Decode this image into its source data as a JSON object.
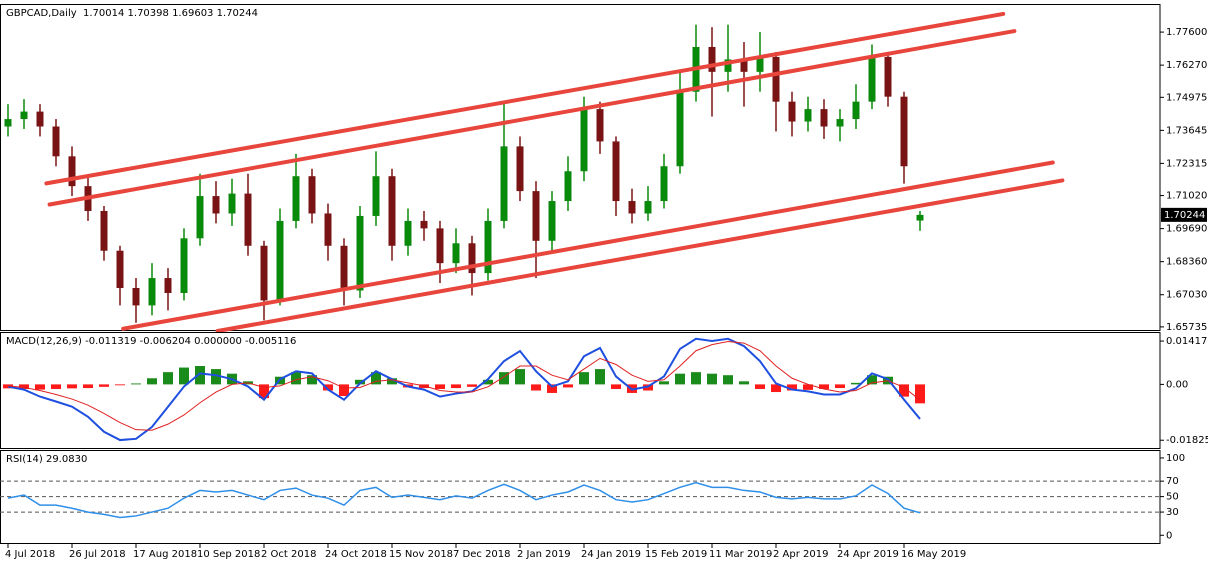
{
  "chart_data": [
    {
      "type": "candlestick",
      "title": "GBPCAD,Daily  1.70014 1.70398 1.69603 1.70244",
      "categories": [
        "4 Jul 2018",
        null,
        null,
        null,
        "26 Jul 2018",
        null,
        null,
        null,
        "17 Aug 2018",
        null,
        null,
        null,
        "10 Sep 2018",
        null,
        null,
        null,
        "2 Oct 2018",
        null,
        null,
        null,
        "24 Oct 2018",
        null,
        null,
        null,
        "15 Nov 2018",
        null,
        null,
        null,
        "7 Dec 2018",
        null,
        null,
        null,
        "2 Jan 2019",
        null,
        null,
        null,
        "24 Jan 2019",
        null,
        null,
        null,
        "15 Feb 2019",
        null,
        null,
        null,
        "11 Mar 2019",
        null,
        null,
        null,
        "2 Apr 2019",
        null,
        null,
        null,
        "24 Apr 2019",
        null,
        null,
        null,
        "16 May 2019",
        null
      ],
      "open": [
        1.738,
        1.741,
        1.744,
        1.738,
        1.726,
        1.714,
        1.704,
        1.688,
        1.673,
        1.666,
        1.677,
        1.671,
        1.693,
        1.71,
        1.703,
        1.711,
        1.69,
        1.668,
        1.7,
        1.718,
        1.703,
        1.69,
        1.672,
        1.702,
        1.718,
        1.69,
        1.7,
        1.697,
        1.683,
        1.691,
        1.679,
        1.7,
        1.73,
        1.712,
        1.692,
        1.708,
        1.72,
        1.745,
        1.732,
        1.708,
        1.703,
        1.708,
        1.722,
        1.752,
        1.77,
        1.76,
        1.765,
        1.76,
        1.766,
        1.748,
        1.74,
        1.745,
        1.738,
        1.741,
        1.748,
        1.766,
        1.75,
        1.70014
      ],
      "high": [
        1.747,
        1.749,
        1.747,
        1.741,
        1.73,
        1.718,
        1.706,
        1.69,
        1.677,
        1.683,
        1.681,
        1.697,
        1.719,
        1.716,
        1.717,
        1.719,
        1.692,
        1.705,
        1.727,
        1.721,
        1.707,
        1.693,
        1.706,
        1.728,
        1.721,
        1.705,
        1.704,
        1.7,
        1.697,
        1.694,
        1.705,
        1.747,
        1.734,
        1.716,
        1.712,
        1.726,
        1.75,
        1.748,
        1.734,
        1.713,
        1.714,
        1.727,
        1.76,
        1.779,
        1.778,
        1.779,
        1.772,
        1.776,
        1.768,
        1.752,
        1.75,
        1.749,
        1.745,
        1.755,
        1.771,
        1.768,
        1.752,
        1.70398
      ],
      "low": [
        1.734,
        1.737,
        1.734,
        1.722,
        1.71,
        1.7,
        1.684,
        1.666,
        1.659,
        1.662,
        1.664,
        1.668,
        1.69,
        1.699,
        1.698,
        1.686,
        1.66,
        1.666,
        1.697,
        1.699,
        1.684,
        1.666,
        1.669,
        1.698,
        1.684,
        1.686,
        1.692,
        1.675,
        1.679,
        1.67,
        1.676,
        1.697,
        1.708,
        1.677,
        1.688,
        1.704,
        1.716,
        1.727,
        1.702,
        1.699,
        1.7,
        1.705,
        1.719,
        1.748,
        1.742,
        1.752,
        1.746,
        1.752,
        1.736,
        1.734,
        1.736,
        1.733,
        1.732,
        1.737,
        1.745,
        1.746,
        1.715,
        1.69603
      ],
      "close": [
        1.741,
        1.744,
        1.738,
        1.726,
        1.714,
        1.704,
        1.688,
        1.673,
        1.666,
        1.677,
        1.671,
        1.693,
        1.71,
        1.703,
        1.711,
        1.69,
        1.668,
        1.7,
        1.718,
        1.703,
        1.69,
        1.672,
        1.702,
        1.718,
        1.69,
        1.7,
        1.697,
        1.683,
        1.691,
        1.679,
        1.7,
        1.73,
        1.712,
        1.692,
        1.708,
        1.72,
        1.745,
        1.732,
        1.708,
        1.703,
        1.708,
        1.722,
        1.752,
        1.77,
        1.76,
        1.765,
        1.76,
        1.766,
        1.748,
        1.74,
        1.745,
        1.738,
        1.741,
        1.748,
        1.766,
        1.75,
        1.722,
        1.70244
      ],
      "up_color": "#0a8a0a",
      "down_color": "#7a1414",
      "ylim": [
        1.6561,
        1.7869
      ],
      "yticks": [
        {
          "value": 1.65735,
          "label": "1.65735"
        },
        {
          "value": 1.6703,
          "label": "1.67030"
        },
        {
          "value": 1.6836,
          "label": "1.68360"
        },
        {
          "value": 1.6969,
          "label": "1.69690"
        },
        {
          "value": 1.7102,
          "label": "1.71020"
        },
        {
          "value": 1.72315,
          "label": "1.72315"
        },
        {
          "value": 1.73645,
          "label": "1.73645"
        },
        {
          "value": 1.74975,
          "label": "1.74975"
        },
        {
          "value": 1.7627,
          "label": "1.76270"
        },
        {
          "value": 1.776,
          "label": "1.77600"
        }
      ],
      "trendline_color": "#e8463c",
      "trendlines": [
        {
          "x": [
            2.4,
            62.2
          ],
          "y": [
            1.7151,
            1.7833
          ]
        },
        {
          "x": [
            2.6,
            62.9
          ],
          "y": [
            1.7066,
            1.7764
          ]
        },
        {
          "x": [
            7.2,
            65.3
          ],
          "y": [
            1.6566,
            1.7235
          ]
        },
        {
          "x": [
            13.1,
            65.9
          ],
          "y": [
            1.6557,
            1.7163
          ]
        }
      ]
    },
    {
      "type": "macd",
      "title": "MACD(12,26,9) -0.011319 -0.006204 0.000000 -0.005116",
      "histogram": {
        "up_color": "#1a8a1a",
        "down_color": "#ff1a1a",
        "values": [
          -0.0013,
          -0.0015,
          -0.0017,
          -0.0015,
          -0.0013,
          -0.0012,
          -0.0008,
          -0.0003,
          0.0003,
          0.002,
          0.004,
          0.0055,
          0.006,
          0.005,
          0.0035,
          0.001,
          -0.0045,
          0.0025,
          0.004,
          0.003,
          -0.002,
          -0.0038,
          0.0015,
          0.004,
          0.002,
          -0.001,
          -0.0012,
          -0.0015,
          -0.0012,
          -0.0008,
          0.0015,
          0.004,
          0.005,
          -0.002,
          -0.0028,
          -0.001,
          0.004,
          0.005,
          -0.0015,
          -0.0028,
          -0.002,
          0.001,
          0.0035,
          0.004,
          0.0035,
          0.003,
          0.001,
          -0.0015,
          -0.0025,
          -0.002,
          -0.0018,
          -0.0015,
          -0.0012,
          0.0005,
          0.003,
          0.0025,
          -0.004,
          -0.0062
        ]
      },
      "series": [
        {
          "color": "#1e4fe0",
          "values": [
            -0.0007,
            -0.0017,
            -0.004,
            -0.0056,
            -0.0073,
            -0.0106,
            -0.0155,
            -0.0182,
            -0.0178,
            -0.0139,
            -0.0073,
            -0.0007,
            0.0036,
            0.003,
            0.0017,
            -0.0007,
            -0.005,
            0.0017,
            0.0043,
            0.0036,
            -0.0017,
            -0.005,
            0.0003,
            0.0043,
            0.0017,
            -0.0007,
            -0.0017,
            -0.004,
            -0.003,
            -0.0023,
            0.0017,
            0.0076,
            0.0109,
            0.0043,
            -0.0007,
            0.001,
            0.0092,
            0.0119,
            0.0026,
            -0.0017,
            -0.0007,
            0.0026,
            0.0116,
            0.0149,
            0.0142,
            0.0149,
            0.0125,
            0.0076,
            0.0003,
            -0.0017,
            -0.0023,
            -0.0033,
            -0.0033,
            -0.0013,
            0.0036,
            0.0017,
            -0.005,
            -0.0113
          ]
        },
        {
          "color": "#e02020",
          "values": [
            -0.0005,
            -0.001,
            -0.002,
            -0.0033,
            -0.0048,
            -0.0068,
            -0.0095,
            -0.0125,
            -0.0148,
            -0.015,
            -0.013,
            -0.01,
            -0.006,
            -0.0025,
            0.0,
            0.0005,
            -0.001,
            -0.0005,
            0.0015,
            0.0025,
            0.0012,
            -0.0012,
            -0.001,
            0.001,
            0.0015,
            0.0005,
            -0.0005,
            -0.002,
            -0.0025,
            -0.0025,
            -0.0008,
            0.0025,
            0.006,
            0.006,
            0.003,
            0.0015,
            0.005,
            0.0085,
            0.0065,
            0.003,
            0.001,
            0.0015,
            0.006,
            0.011,
            0.013,
            0.014,
            0.0135,
            0.011,
            0.006,
            0.002,
            0.0,
            -0.0015,
            -0.0025,
            -0.002,
            0.0005,
            0.0012,
            -0.001,
            -0.0051
          ]
        }
      ],
      "ylim": [
        -0.0208,
        0.0168
      ],
      "yticks": [
        -0.018256,
        {
          "value": 0,
          "label": "0.00"
        },
        0.01417
      ]
    },
    {
      "type": "line",
      "title": "RSI(14) 29.0830",
      "series": [
        {
          "color": "#2f8fe8",
          "values": [
            48,
            52,
            39,
            39,
            35,
            30,
            27,
            23,
            25,
            30,
            35,
            48,
            58,
            56,
            58,
            52,
            46,
            58,
            61,
            52,
            48,
            39,
            58,
            62,
            49,
            52,
            49,
            46,
            51,
            48,
            58,
            66,
            58,
            46,
            52,
            56,
            65,
            58,
            46,
            43,
            46,
            54,
            62,
            68,
            62,
            62,
            58,
            56,
            49,
            47,
            49,
            47,
            47,
            51,
            65,
            54,
            35,
            29.083
          ]
        }
      ],
      "ylim": [
        -10,
        109
      ],
      "yticks": [
        0,
        30,
        50,
        70,
        100
      ],
      "levels": [
        30,
        50,
        70
      ]
    }
  ]
}
